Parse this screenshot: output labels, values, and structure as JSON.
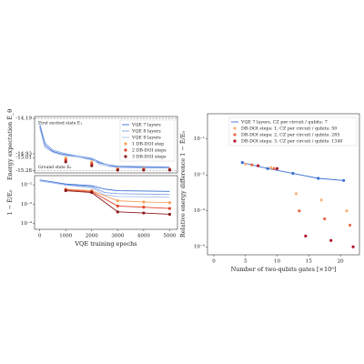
{
  "chart_data": [
    {
      "type": "line",
      "ylabel": "Energy expectation Ê_θ",
      "xlim": [
        -200,
        5300
      ],
      "ylim": [
        -15.33,
        -14.15
      ],
      "yticks": [
        -14.19,
        -14.93,
        -15.01,
        -15.28
      ],
      "legend": "upper right",
      "annotations": [
        {
          "text": "First excited state E₁",
          "value": -14.19
        },
        {
          "text": "Ground state E₀",
          "value": -15.28
        }
      ],
      "series": [
        {
          "name": "VQE 7 layers",
          "color": "#3b6fd4",
          "x": [
            0,
            200,
            500,
            800,
            1000,
            1500,
            2000,
            2300,
            2700,
            3000,
            4000,
            5000
          ],
          "values": [
            -14.35,
            -14.75,
            -14.88,
            -14.93,
            -14.95,
            -15.0,
            -15.05,
            -15.12,
            -15.17,
            -15.19,
            -15.2,
            -15.21
          ]
        },
        {
          "name": "VQE 8 layers",
          "color": "#7fa3e8",
          "x": [
            0,
            200,
            500,
            800,
            1000,
            1500,
            2000,
            2300,
            2700,
            3000,
            4000,
            5000
          ],
          "values": [
            -14.3,
            -14.7,
            -14.85,
            -14.9,
            -14.93,
            -14.98,
            -15.02,
            -15.1,
            -15.18,
            -15.21,
            -15.22,
            -15.22
          ]
        },
        {
          "name": "VQE 9 layers",
          "color": "#a9c1ee",
          "x": [
            0,
            200,
            500,
            800,
            1000,
            1500,
            2000,
            2300,
            2700,
            3000,
            4000,
            5000
          ],
          "values": [
            -14.4,
            -14.8,
            -14.9,
            -14.95,
            -14.97,
            -15.0,
            -15.03,
            -15.15,
            -15.2,
            -15.22,
            -15.23,
            -15.23
          ]
        },
        {
          "name": "1 DB-DOI step",
          "color": "#f5a25d",
          "line": false,
          "x": [
            1000,
            2000,
            3000,
            4000,
            5000
          ],
          "values": [
            -15.02,
            -15.1,
            -15.24,
            -15.24,
            -15.25
          ]
        },
        {
          "name": "2 DB-DOI steps",
          "color": "#e0452b",
          "line": false,
          "x": [
            1000,
            2000,
            3000,
            4000,
            5000
          ],
          "values": [
            -15.06,
            -15.14,
            -15.26,
            -15.26,
            -15.26
          ]
        },
        {
          "name": "3 DB-DOI steps",
          "color": "#8b1a1a",
          "line": false,
          "x": [
            1000,
            2000,
            3000,
            4000,
            5000
          ],
          "values": [
            -15.1,
            -15.18,
            -15.27,
            -15.27,
            -15.27
          ]
        }
      ]
    },
    {
      "type": "line",
      "log": true,
      "xlabel": "VQE training epochs",
      "ylabel": "1 − Ê/E₀",
      "xlim": [
        -200,
        5300
      ],
      "xticks": [
        0,
        1000,
        2000,
        3000,
        4000,
        5000
      ],
      "ylim": [
        5e-05,
        0.03
      ],
      "yticks": [
        {
          "value": 0.01,
          "label": "10⁻²"
        },
        {
          "value": 0.001,
          "label": "10⁻³"
        },
        {
          "value": 0.0001,
          "label": "10⁻⁴"
        }
      ],
      "series": [
        {
          "color": "#3b6fd4",
          "x": [
            0,
            1000,
            2000,
            2500,
            3000,
            4000,
            5000
          ],
          "values": [
            0.018,
            0.011,
            0.009,
            0.006,
            0.005,
            0.0048,
            0.0046
          ]
        },
        {
          "color": "#7fa3e8",
          "x": [
            0,
            1000,
            2000,
            2500,
            3000,
            4000,
            5000
          ],
          "values": [
            0.016,
            0.01,
            0.008,
            0.004,
            0.0035,
            0.0033,
            0.0032
          ]
        },
        {
          "color": "#a9c1ee",
          "x": [
            0,
            1000,
            2000,
            2500,
            3000,
            4000,
            5000
          ],
          "values": [
            0.017,
            0.0095,
            0.007,
            0.003,
            0.0025,
            0.0024,
            0.0023
          ]
        },
        {
          "color": "#f5a25d",
          "markers": true,
          "x": [
            1000,
            2000,
            3000,
            4000,
            5000
          ],
          "values": [
            0.006,
            0.005,
            0.0015,
            0.0013,
            0.0012
          ]
        },
        {
          "color": "#e0452b",
          "markers": true,
          "x": [
            1000,
            2000,
            3000,
            4000,
            5000
          ],
          "values": [
            0.0055,
            0.0045,
            0.0008,
            0.0007,
            0.0006
          ]
        },
        {
          "color": "#8b1a1a",
          "markers": true,
          "x": [
            1000,
            2000,
            3000,
            4000,
            5000
          ],
          "values": [
            0.005,
            0.004,
            0.0004,
            0.00035,
            0.0003
          ]
        }
      ]
    },
    {
      "type": "line",
      "log": true,
      "xlabel": "Number of two-qubits gates [×10⁵]",
      "ylabel": "Relative energy difference 1 − Ê/E₀",
      "xlim": [
        -1,
        23
      ],
      "xticks": [
        0,
        5,
        10,
        15,
        20
      ],
      "ylim": [
        6e-05,
        0.5
      ],
      "yticks": [
        {
          "value": 0.1,
          "label": "10⁻¹"
        },
        {
          "value": 0.01,
          "label": "10⁻²"
        },
        {
          "value": 0.001,
          "label": "10⁻³"
        },
        {
          "value": 0.0001,
          "label": "10⁻⁴"
        }
      ],
      "legend": "upper right",
      "series": [
        {
          "name": "VQE 7 layers,  CZ per circuit / qubits: 7",
          "color": "#3b6fd4",
          "markers": true,
          "x": [
            4.5,
            8.5,
            12.5,
            16.5,
            20.5
          ],
          "values": [
            0.022,
            0.015,
            0.011,
            0.008,
            0.007
          ]
        },
        {
          "name": "DB-DOI steps: 1,  CZ per circuit / qubits: 50",
          "color": "#f7b27a",
          "line": false,
          "x": [
            5,
            9,
            13,
            17,
            21
          ],
          "values": [
            0.02,
            0.016,
            0.003,
            0.002,
            0.001
          ]
        },
        {
          "name": "DB-DOI steps: 2,  CZ per circuit / qubits: 285",
          "color": "#e86a4a",
          "line": false,
          "x": [
            6,
            9.5,
            13.5,
            17.5,
            21.5
          ],
          "values": [
            0.019,
            0.015,
            0.001,
            0.0006,
            0.0004
          ]
        },
        {
          "name": "DB-DOI steps: 3,  CZ per circuit / qubits: 1340",
          "color": "#b0172a",
          "line": false,
          "x": [
            7,
            10,
            14.5,
            18.5,
            22
          ],
          "values": [
            0.018,
            0.015,
            0.0002,
            0.00015,
            0.0001
          ]
        }
      ]
    }
  ]
}
